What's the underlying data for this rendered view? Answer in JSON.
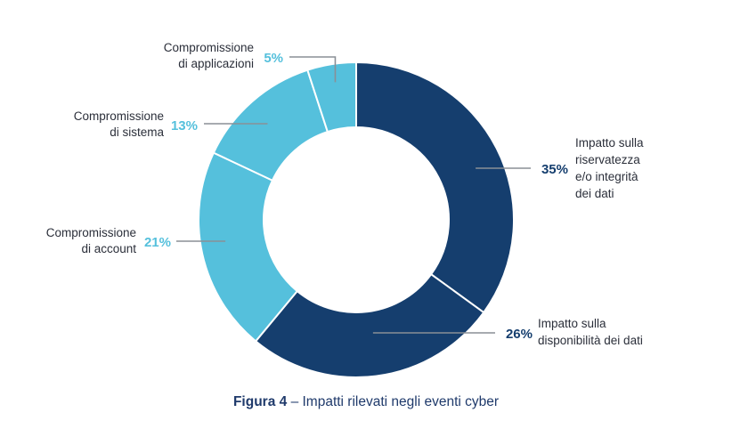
{
  "colors": {
    "dark": "#153e6e",
    "light": "#55c0dc",
    "leader": "#8a8f96"
  },
  "caption": {
    "figure": "Figura 4",
    "text": "– Impatti rilevati negli eventi cyber"
  },
  "chart_data": {
    "type": "pie",
    "donut": true,
    "slices": [
      {
        "label": [
          "Impatto sulla",
          "riservatezza",
          "e/o integrità",
          "dei dati"
        ],
        "value": 35,
        "display": "35%",
        "color": "#153e6e"
      },
      {
        "label": [
          "Impatto sulla",
          "disponibilità dei dati"
        ],
        "value": 26,
        "display": "26%",
        "color": "#153e6e"
      },
      {
        "label": [
          "Compromissione",
          "di account"
        ],
        "value": 21,
        "display": "21%",
        "color": "#55c0dc"
      },
      {
        "label": [
          "Compromissione",
          "di sistema"
        ],
        "value": 13,
        "display": "13%",
        "color": "#55c0dc"
      },
      {
        "label": [
          "Compromissione",
          "di applicazioni"
        ],
        "value": 5,
        "display": "5%",
        "color": "#55c0dc"
      }
    ]
  }
}
